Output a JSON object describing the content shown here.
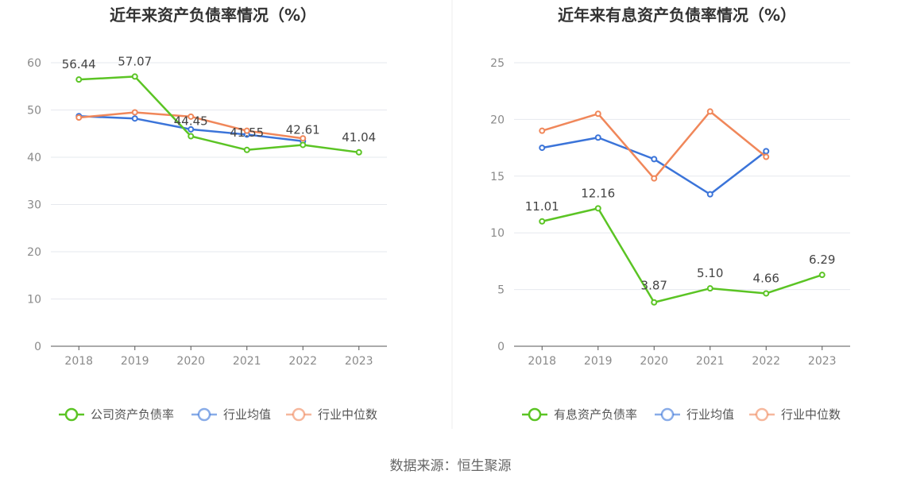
{
  "source": "数据来源：恒生聚源",
  "chart_data": [
    {
      "type": "line",
      "title": "近年来资产负债率情况（%）",
      "categories": [
        "2018",
        "2019",
        "2020",
        "2021",
        "2022",
        "2023"
      ],
      "ylim": [
        0,
        60
      ],
      "yticks": [
        "0",
        "10",
        "20",
        "30",
        "40",
        "50",
        "60"
      ],
      "grid": true,
      "legend_position": "bottom",
      "series": [
        {
          "name": "公司资产负债率",
          "color": "#5bc424",
          "values": [
            56.44,
            57.07,
            44.45,
            41.55,
            42.61,
            41.04
          ],
          "labels": [
            "56.44",
            "57.07",
            "44.45",
            "41.55",
            "42.61",
            "41.04"
          ]
        },
        {
          "name": "行业均值",
          "color": "#3b74d9",
          "values": [
            48.7,
            48.2,
            45.9,
            44.8,
            43.4,
            null
          ]
        },
        {
          "name": "行业中位数",
          "color": "#f0875a",
          "values": [
            48.4,
            49.5,
            48.6,
            45.6,
            44.0,
            null
          ]
        }
      ]
    },
    {
      "type": "line",
      "title": "近年来有息资产负债率情况（%）",
      "categories": [
        "2018",
        "2019",
        "2020",
        "2021",
        "2022",
        "2023"
      ],
      "ylim": [
        0,
        25
      ],
      "yticks": [
        "0",
        "5",
        "10",
        "15",
        "20",
        "25"
      ],
      "grid": true,
      "legend_position": "bottom",
      "series": [
        {
          "name": "有息资产负债率",
          "color": "#5bc424",
          "values": [
            11.01,
            12.16,
            3.87,
            5.1,
            4.66,
            6.29
          ],
          "labels": [
            "11.01",
            "12.16",
            "3.87",
            "5.10",
            "4.66",
            "6.29"
          ]
        },
        {
          "name": "行业均值",
          "color": "#3b74d9",
          "values": [
            17.5,
            18.4,
            16.5,
            13.4,
            17.2,
            null
          ]
        },
        {
          "name": "行业中位数",
          "color": "#f0875a",
          "values": [
            19.0,
            20.5,
            14.8,
            20.7,
            16.7,
            null
          ]
        }
      ]
    }
  ]
}
